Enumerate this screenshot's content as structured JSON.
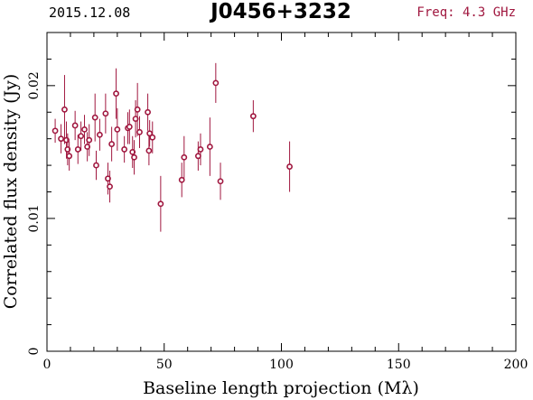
{
  "header": {
    "date": "2015.12.08",
    "source": "J0456+3232",
    "frequency": "Freq: 4.3 GHz"
  },
  "chart_data": {
    "type": "scatter",
    "title": "J0456+3232",
    "xlabel": "Baseline length projection (Mλ)",
    "ylabel": "Correlated flux density (Jy)",
    "xlim": [
      0,
      200
    ],
    "ylim": [
      0,
      0.024
    ],
    "x_ticks": [
      "0",
      "50",
      "100",
      "150",
      "200"
    ],
    "y_ticks": [
      "0",
      "0.01",
      "0.02"
    ],
    "marker_color": "#a0173f",
    "points": [
      {
        "x": 3.5,
        "y": 0.0166,
        "err": 0.0009
      },
      {
        "x": 6.0,
        "y": 0.016,
        "err": 0.0011
      },
      {
        "x": 7.5,
        "y": 0.0182,
        "err": 0.0026
      },
      {
        "x": 8.3,
        "y": 0.0159,
        "err": 0.0014
      },
      {
        "x": 8.8,
        "y": 0.0152,
        "err": 0.0012
      },
      {
        "x": 9.5,
        "y": 0.0147,
        "err": 0.0011
      },
      {
        "x": 12.0,
        "y": 0.017,
        "err": 0.0011
      },
      {
        "x": 13.2,
        "y": 0.0152,
        "err": 0.0011
      },
      {
        "x": 14.5,
        "y": 0.0162,
        "err": 0.0011
      },
      {
        "x": 16.0,
        "y": 0.0167,
        "err": 0.0011
      },
      {
        "x": 17.2,
        "y": 0.0154,
        "err": 0.0011
      },
      {
        "x": 18.0,
        "y": 0.0159,
        "err": 0.0012
      },
      {
        "x": 20.5,
        "y": 0.0176,
        "err": 0.0018
      },
      {
        "x": 21.0,
        "y": 0.014,
        "err": 0.0011
      },
      {
        "x": 22.5,
        "y": 0.0163,
        "err": 0.0012
      },
      {
        "x": 25.0,
        "y": 0.0179,
        "err": 0.0015
      },
      {
        "x": 26.0,
        "y": 0.013,
        "err": 0.0012
      },
      {
        "x": 26.8,
        "y": 0.0124,
        "err": 0.0012
      },
      {
        "x": 27.6,
        "y": 0.0156,
        "err": 0.0013
      },
      {
        "x": 29.5,
        "y": 0.0194,
        "err": 0.0019
      },
      {
        "x": 30.0,
        "y": 0.0167,
        "err": 0.0016
      },
      {
        "x": 33.0,
        "y": 0.0152,
        "err": 0.001
      },
      {
        "x": 34.5,
        "y": 0.0168,
        "err": 0.0012
      },
      {
        "x": 35.2,
        "y": 0.0169,
        "err": 0.0013
      },
      {
        "x": 36.5,
        "y": 0.015,
        "err": 0.0012
      },
      {
        "x": 37.2,
        "y": 0.0146,
        "err": 0.0013
      },
      {
        "x": 37.8,
        "y": 0.0175,
        "err": 0.0014
      },
      {
        "x": 38.6,
        "y": 0.0182,
        "err": 0.002
      },
      {
        "x": 39.5,
        "y": 0.0165,
        "err": 0.0012
      },
      {
        "x": 43.0,
        "y": 0.018,
        "err": 0.0014
      },
      {
        "x": 43.5,
        "y": 0.0151,
        "err": 0.0011
      },
      {
        "x": 43.8,
        "y": 0.0164,
        "err": 0.001
      },
      {
        "x": 45.0,
        "y": 0.0161,
        "err": 0.0012
      },
      {
        "x": 48.5,
        "y": 0.0111,
        "err": 0.0021
      },
      {
        "x": 57.5,
        "y": 0.0129,
        "err": 0.0013
      },
      {
        "x": 58.5,
        "y": 0.0146,
        "err": 0.0016
      },
      {
        "x": 64.5,
        "y": 0.0147,
        "err": 0.0011
      },
      {
        "x": 65.5,
        "y": 0.0152,
        "err": 0.0012
      },
      {
        "x": 69.5,
        "y": 0.0154,
        "err": 0.0022
      },
      {
        "x": 72.0,
        "y": 0.0202,
        "err": 0.0015
      },
      {
        "x": 74.0,
        "y": 0.0128,
        "err": 0.0014
      },
      {
        "x": 88.0,
        "y": 0.0177,
        "err": 0.0012
      },
      {
        "x": 103.5,
        "y": 0.0139,
        "err": 0.0019
      }
    ]
  }
}
